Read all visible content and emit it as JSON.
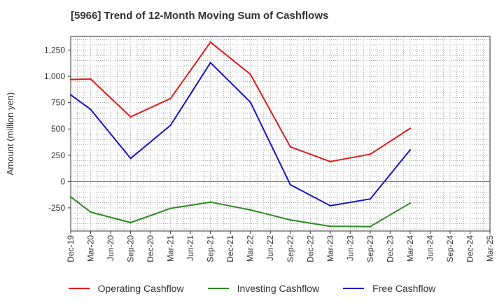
{
  "chart_data": {
    "type": "line",
    "title": "[5966]  Trend of 12-Month Moving Sum of Cashflows",
    "xlabel": "",
    "ylabel": "Amount (million yen)",
    "x": [
      "Dec-19",
      "Mar-20",
      "Jun-20",
      "Sep-20",
      "Dec-20",
      "Mar-21",
      "Jun-21",
      "Sep-21",
      "Dec-21",
      "Mar-22",
      "Jun-22",
      "Sep-22",
      "Dec-22",
      "Mar-23",
      "Jun-23",
      "Sep-23",
      "Dec-23",
      "Mar-24",
      "Jun-24",
      "Sep-24",
      "Dec-24",
      "Mar-25"
    ],
    "ylim": [
      -470,
      1380
    ],
    "yticks": [
      -250,
      0,
      250,
      500,
      750,
      1000,
      1250
    ],
    "ytick_labels": [
      "-250",
      "0",
      "250",
      "500",
      "750",
      "1,000",
      "1,250"
    ],
    "grid": true,
    "legend_position": "bottom",
    "series": [
      {
        "name": "Operating Cashflow",
        "color": "#e31a1c",
        "values": [
          970,
          975,
          null,
          615,
          null,
          790,
          null,
          1325,
          null,
          1020,
          null,
          330,
          null,
          190,
          null,
          260,
          null,
          505,
          null,
          null,
          null,
          null
        ]
      },
      {
        "name": "Investing Cashflow",
        "color": "#2e8b22",
        "values": [
          -145,
          -290,
          null,
          -390,
          null,
          -255,
          null,
          -195,
          null,
          -270,
          null,
          -365,
          null,
          -425,
          null,
          -428,
          null,
          -205,
          null,
          null,
          null,
          null
        ]
      },
      {
        "name": "Free Cashflow",
        "color": "#1515cc",
        "values": [
          825,
          685,
          null,
          220,
          null,
          535,
          null,
          1130,
          null,
          755,
          null,
          -30,
          null,
          -230,
          null,
          -165,
          null,
          300,
          null,
          null,
          null,
          null
        ]
      }
    ]
  }
}
